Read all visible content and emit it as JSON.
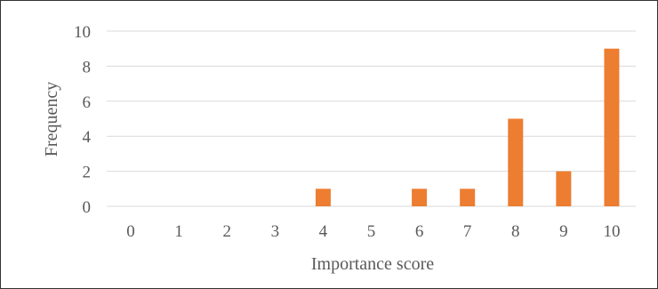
{
  "chart_data": {
    "type": "bar",
    "title": "",
    "xlabel": "Importance score",
    "ylabel": "Frequency",
    "categories": [
      "0",
      "1",
      "2",
      "3",
      "4",
      "5",
      "6",
      "7",
      "8",
      "9",
      "10"
    ],
    "values": [
      0,
      0,
      0,
      0,
      1,
      0,
      1,
      1,
      5,
      2,
      9
    ],
    "ylim": [
      0,
      10
    ],
    "yticks": [
      "0",
      "2",
      "4",
      "6",
      "8",
      "10"
    ],
    "grid": "horizontal",
    "legend": "none",
    "bar_color": "#ED7D31",
    "grid_color": "#D9D9D9"
  }
}
